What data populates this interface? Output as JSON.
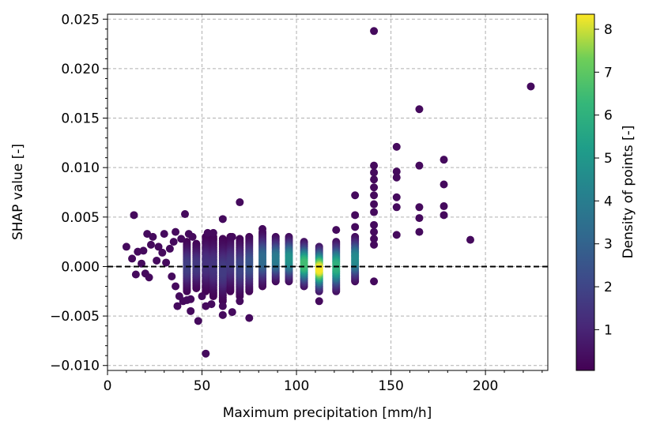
{
  "chart_data": {
    "type": "scatter",
    "xlabel": "Maximum precipitation [mm/h]",
    "ylabel": "SHAP value [-]",
    "xlim": [
      0,
      233
    ],
    "ylim": [
      -0.0105,
      0.0255
    ],
    "x_ticks": [
      0,
      50,
      100,
      150,
      200
    ],
    "x_tick_labels": [
      "0",
      "50",
      "100",
      "150",
      "200"
    ],
    "y_ticks": [
      -0.01,
      -0.005,
      0.0,
      0.005,
      0.01,
      0.015,
      0.02,
      0.025
    ],
    "y_tick_labels": [
      "−0.010",
      "−0.005",
      "0.000",
      "0.005",
      "0.010",
      "0.015",
      "0.020",
      "0.025"
    ],
    "grid": true,
    "reference_line_y": 0.0,
    "colorbar": {
      "label": "Density of points [-]",
      "range": [
        0.05,
        8.35
      ],
      "ticks": [
        1,
        2,
        3,
        4,
        5,
        6,
        7,
        8
      ],
      "tick_labels": [
        "1",
        "2",
        "3",
        "4",
        "5",
        "6",
        "7",
        "8"
      ],
      "colormap": "viridis"
    },
    "dense_columns": [
      {
        "x": 42,
        "ymin": -0.0025,
        "ymax": 0.0025,
        "peak": 1.8
      },
      {
        "x": 47,
        "ymin": -0.0022,
        "ymax": 0.0023,
        "peak": 1.6
      },
      {
        "x": 52,
        "ymin": -0.0025,
        "ymax": 0.003,
        "peak": 1.4
      },
      {
        "x": 56,
        "ymin": -0.003,
        "ymax": 0.003,
        "peak": 1.5
      },
      {
        "x": 61,
        "ymin": -0.0035,
        "ymax": 0.0028,
        "peak": 1.7
      },
      {
        "x": 65,
        "ymin": -0.0025,
        "ymax": 0.003,
        "peak": 1.6
      },
      {
        "x": 70,
        "ymin": -0.003,
        "ymax": 0.0028,
        "peak": 2.0
      },
      {
        "x": 75,
        "ymin": -0.0025,
        "ymax": 0.003,
        "peak": 2.5
      },
      {
        "x": 82,
        "ymin": -0.002,
        "ymax": 0.0035,
        "peak": 3.3
      },
      {
        "x": 89,
        "ymin": -0.0015,
        "ymax": 0.003,
        "peak": 3.9
      },
      {
        "x": 96,
        "ymin": -0.0015,
        "ymax": 0.003,
        "peak": 4.8
      },
      {
        "x": 104,
        "ymin": -0.002,
        "ymax": 0.0025,
        "peak": 6.5
      },
      {
        "x": 112,
        "ymin": -0.0025,
        "ymax": 0.002,
        "peak": 8.3
      },
      {
        "x": 121,
        "ymin": -0.0025,
        "ymax": 0.0025,
        "peak": 6.0
      },
      {
        "x": 131,
        "ymin": -0.0015,
        "ymax": 0.003,
        "peak": 4.5
      }
    ],
    "scattered_points": [
      {
        "x": 10,
        "y": 0.002,
        "d": 0.3
      },
      {
        "x": 13,
        "y": 0.0008,
        "d": 0.3
      },
      {
        "x": 14,
        "y": 0.0052,
        "d": 0.3
      },
      {
        "x": 15,
        "y": -0.0008,
        "d": 0.3
      },
      {
        "x": 16,
        "y": 0.0015,
        "d": 0.3
      },
      {
        "x": 18,
        "y": 0.0003,
        "d": 0.3
      },
      {
        "x": 19,
        "y": 0.0016,
        "d": 0.3
      },
      {
        "x": 20,
        "y": -0.0007,
        "d": 0.3
      },
      {
        "x": 21,
        "y": 0.0033,
        "d": 0.3
      },
      {
        "x": 22,
        "y": -0.0011,
        "d": 0.3
      },
      {
        "x": 23,
        "y": 0.0022,
        "d": 0.3
      },
      {
        "x": 24,
        "y": 0.003,
        "d": 0.3
      },
      {
        "x": 26,
        "y": 0.0006,
        "d": 0.3
      },
      {
        "x": 27,
        "y": 0.002,
        "d": 0.3
      },
      {
        "x": 29,
        "y": 0.0014,
        "d": 0.3
      },
      {
        "x": 30,
        "y": 0.0033,
        "d": 0.3
      },
      {
        "x": 31,
        "y": 0.0004,
        "d": 0.3
      },
      {
        "x": 33,
        "y": 0.0018,
        "d": 0.3
      },
      {
        "x": 34,
        "y": -0.001,
        "d": 0.3
      },
      {
        "x": 35,
        "y": 0.0025,
        "d": 0.3
      },
      {
        "x": 36,
        "y": 0.0035,
        "d": 0.3
      },
      {
        "x": 36,
        "y": -0.002,
        "d": 0.3
      },
      {
        "x": 37,
        "y": -0.004,
        "d": 0.3
      },
      {
        "x": 38,
        "y": -0.003,
        "d": 0.3
      },
      {
        "x": 39,
        "y": 0.0028,
        "d": 0.3
      },
      {
        "x": 40,
        "y": -0.0035,
        "d": 0.3
      },
      {
        "x": 41,
        "y": 0.0053,
        "d": 0.3
      },
      {
        "x": 42,
        "y": -0.0034,
        "d": 0.3
      },
      {
        "x": 43,
        "y": 0.0033,
        "d": 0.3
      },
      {
        "x": 44,
        "y": -0.0045,
        "d": 0.3
      },
      {
        "x": 44,
        "y": -0.0033,
        "d": 0.3
      },
      {
        "x": 45,
        "y": 0.003,
        "d": 0.3
      },
      {
        "x": 48,
        "y": -0.0055,
        "d": 0.3
      },
      {
        "x": 50,
        "y": -0.003,
        "d": 0.3
      },
      {
        "x": 52,
        "y": -0.0088,
        "d": 0.3
      },
      {
        "x": 52,
        "y": -0.004,
        "d": 0.3
      },
      {
        "x": 53,
        "y": 0.0034,
        "d": 0.3
      },
      {
        "x": 55,
        "y": -0.0038,
        "d": 0.3
      },
      {
        "x": 56,
        "y": 0.0034,
        "d": 0.3
      },
      {
        "x": 61,
        "y": 0.0048,
        "d": 0.3
      },
      {
        "x": 61,
        "y": -0.0049,
        "d": 0.3
      },
      {
        "x": 61,
        "y": -0.004,
        "d": 0.3
      },
      {
        "x": 66,
        "y": 0.003,
        "d": 0.3
      },
      {
        "x": 66,
        "y": -0.0046,
        "d": 0.3
      },
      {
        "x": 70,
        "y": 0.0065,
        "d": 0.3
      },
      {
        "x": 70,
        "y": -0.0035,
        "d": 0.3
      },
      {
        "x": 75,
        "y": -0.0052,
        "d": 0.3
      },
      {
        "x": 82,
        "y": 0.0038,
        "d": 0.3
      },
      {
        "x": 141,
        "y": 0.0238,
        "d": 0.3
      },
      {
        "x": 141,
        "y": 0.0102,
        "d": 0.3
      },
      {
        "x": 141,
        "y": 0.0095,
        "d": 0.3
      },
      {
        "x": 141,
        "y": 0.0088,
        "d": 0.3
      },
      {
        "x": 141,
        "y": 0.008,
        "d": 0.3
      },
      {
        "x": 141,
        "y": 0.0072,
        "d": 0.3
      },
      {
        "x": 141,
        "y": 0.0063,
        "d": 0.3
      },
      {
        "x": 141,
        "y": 0.0055,
        "d": 0.3
      },
      {
        "x": 141,
        "y": 0.0042,
        "d": 0.3
      },
      {
        "x": 141,
        "y": 0.0035,
        "d": 0.3
      },
      {
        "x": 141,
        "y": 0.0028,
        "d": 0.3
      },
      {
        "x": 141,
        "y": 0.0022,
        "d": 0.3
      },
      {
        "x": 141,
        "y": -0.0015,
        "d": 0.3
      },
      {
        "x": 131,
        "y": 0.0072,
        "d": 0.3
      },
      {
        "x": 131,
        "y": 0.0052,
        "d": 0.3
      },
      {
        "x": 131,
        "y": 0.004,
        "d": 0.3
      },
      {
        "x": 121,
        "y": 0.0037,
        "d": 0.3
      },
      {
        "x": 112,
        "y": -0.0035,
        "d": 0.3
      },
      {
        "x": 153,
        "y": 0.0121,
        "d": 0.3
      },
      {
        "x": 153,
        "y": 0.0096,
        "d": 0.3
      },
      {
        "x": 153,
        "y": 0.009,
        "d": 0.3
      },
      {
        "x": 153,
        "y": 0.007,
        "d": 0.3
      },
      {
        "x": 153,
        "y": 0.006,
        "d": 0.3
      },
      {
        "x": 153,
        "y": 0.0032,
        "d": 0.3
      },
      {
        "x": 165,
        "y": 0.0159,
        "d": 0.3
      },
      {
        "x": 165,
        "y": 0.0102,
        "d": 0.3
      },
      {
        "x": 165,
        "y": 0.006,
        "d": 0.3
      },
      {
        "x": 165,
        "y": 0.0049,
        "d": 0.3
      },
      {
        "x": 165,
        "y": 0.0035,
        "d": 0.3
      },
      {
        "x": 178,
        "y": 0.0108,
        "d": 0.3
      },
      {
        "x": 178,
        "y": 0.0083,
        "d": 0.3
      },
      {
        "x": 178,
        "y": 0.0061,
        "d": 0.3
      },
      {
        "x": 178,
        "y": 0.0052,
        "d": 0.3
      },
      {
        "x": 192,
        "y": 0.0027,
        "d": 0.3
      },
      {
        "x": 224,
        "y": 0.0182,
        "d": 0.3
      }
    ]
  }
}
